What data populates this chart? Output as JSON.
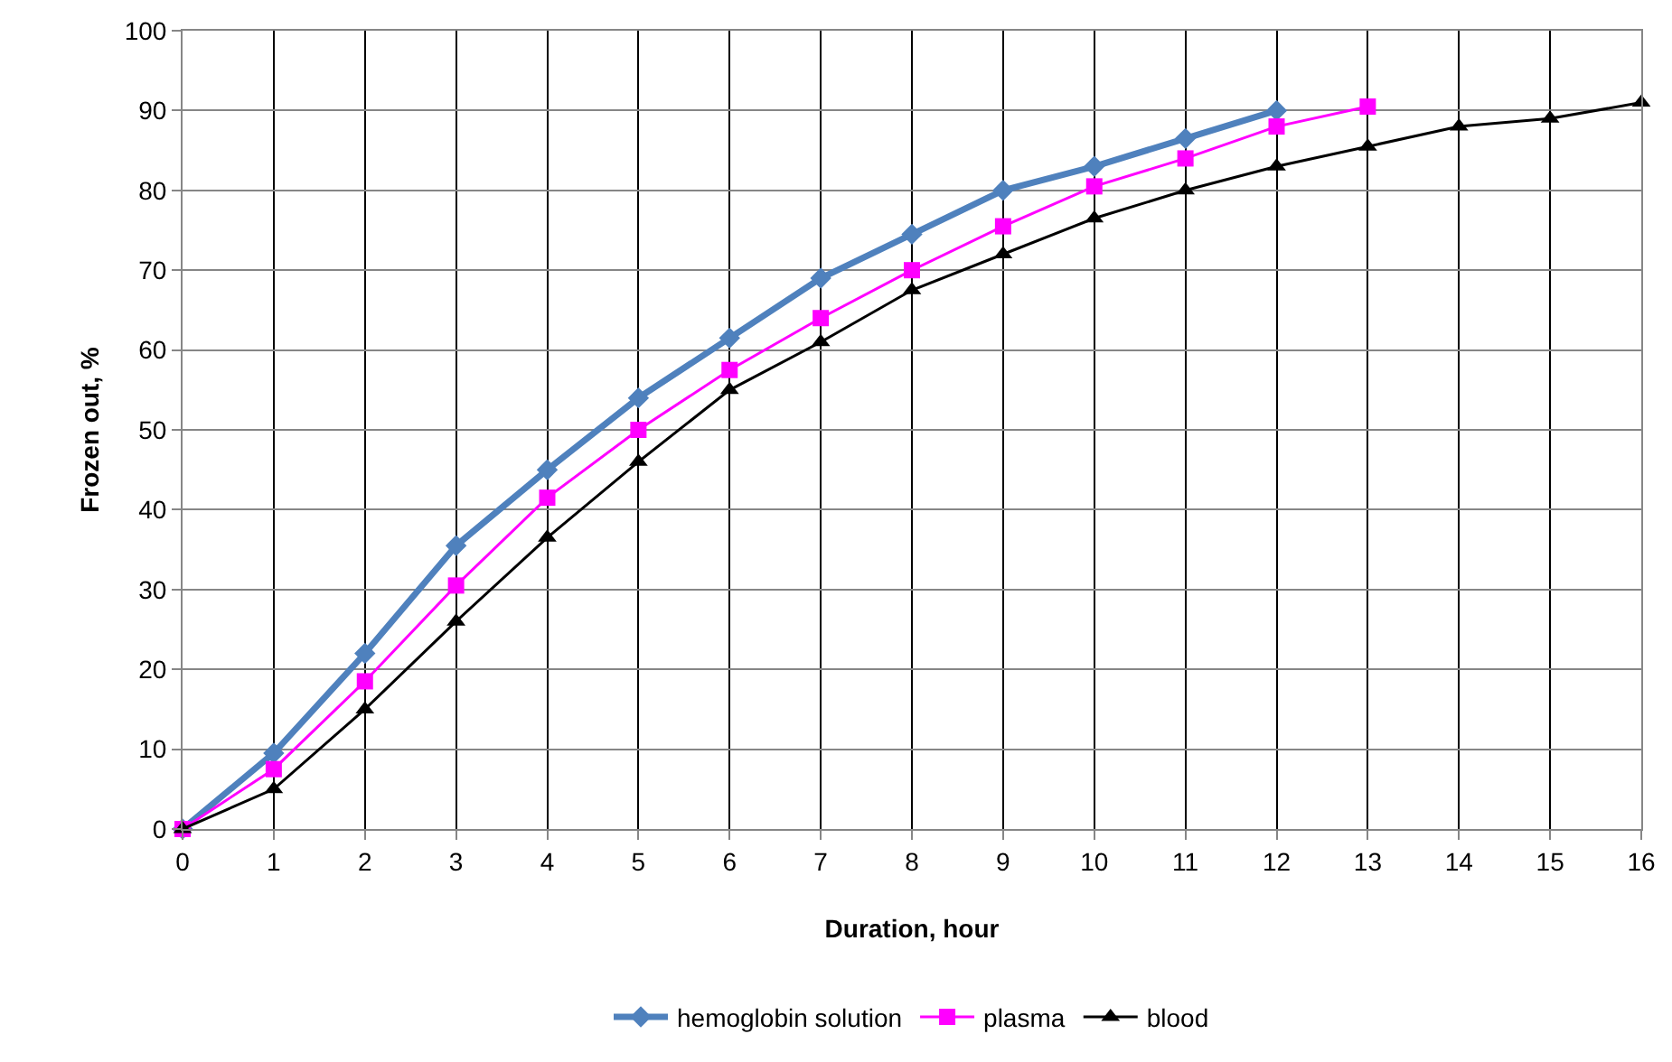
{
  "chart_data": {
    "type": "line",
    "xlabel": "Duration, hour",
    "ylabel": "Frozen out, %",
    "x": [
      0,
      1,
      2,
      3,
      4,
      5,
      6,
      7,
      8,
      9,
      10,
      11,
      12,
      13,
      14,
      15,
      16
    ],
    "xlim": [
      0,
      16
    ],
    "xticks": [
      0,
      1,
      2,
      3,
      4,
      5,
      6,
      7,
      8,
      9,
      10,
      11,
      12,
      13,
      14,
      15,
      16
    ],
    "ylim": [
      0,
      100
    ],
    "yticks": [
      0,
      10,
      20,
      30,
      40,
      50,
      60,
      70,
      80,
      90,
      100
    ],
    "grid": true,
    "legend": "bottom",
    "series": [
      {
        "name": "hemoglobin solution",
        "color": "#4f81bd",
        "marker": "diamond",
        "values": [
          0,
          9.5,
          22,
          35.5,
          45,
          54,
          61.5,
          69,
          74.5,
          80,
          83,
          86.5,
          90,
          null,
          null,
          null,
          null
        ]
      },
      {
        "name": "plasma",
        "color": "#ff00ff",
        "marker": "square",
        "values": [
          0,
          7.5,
          18.5,
          30.5,
          41.5,
          50,
          57.5,
          64,
          70,
          75.5,
          80.5,
          84,
          88,
          90.5,
          null,
          null,
          null
        ]
      },
      {
        "name": "blood",
        "color": "#000000",
        "marker": "triangle",
        "values": [
          0,
          5,
          15,
          26,
          36.5,
          46,
          55,
          61,
          67.5,
          72,
          76.5,
          80,
          83,
          85.5,
          88,
          89,
          91
        ]
      }
    ]
  }
}
